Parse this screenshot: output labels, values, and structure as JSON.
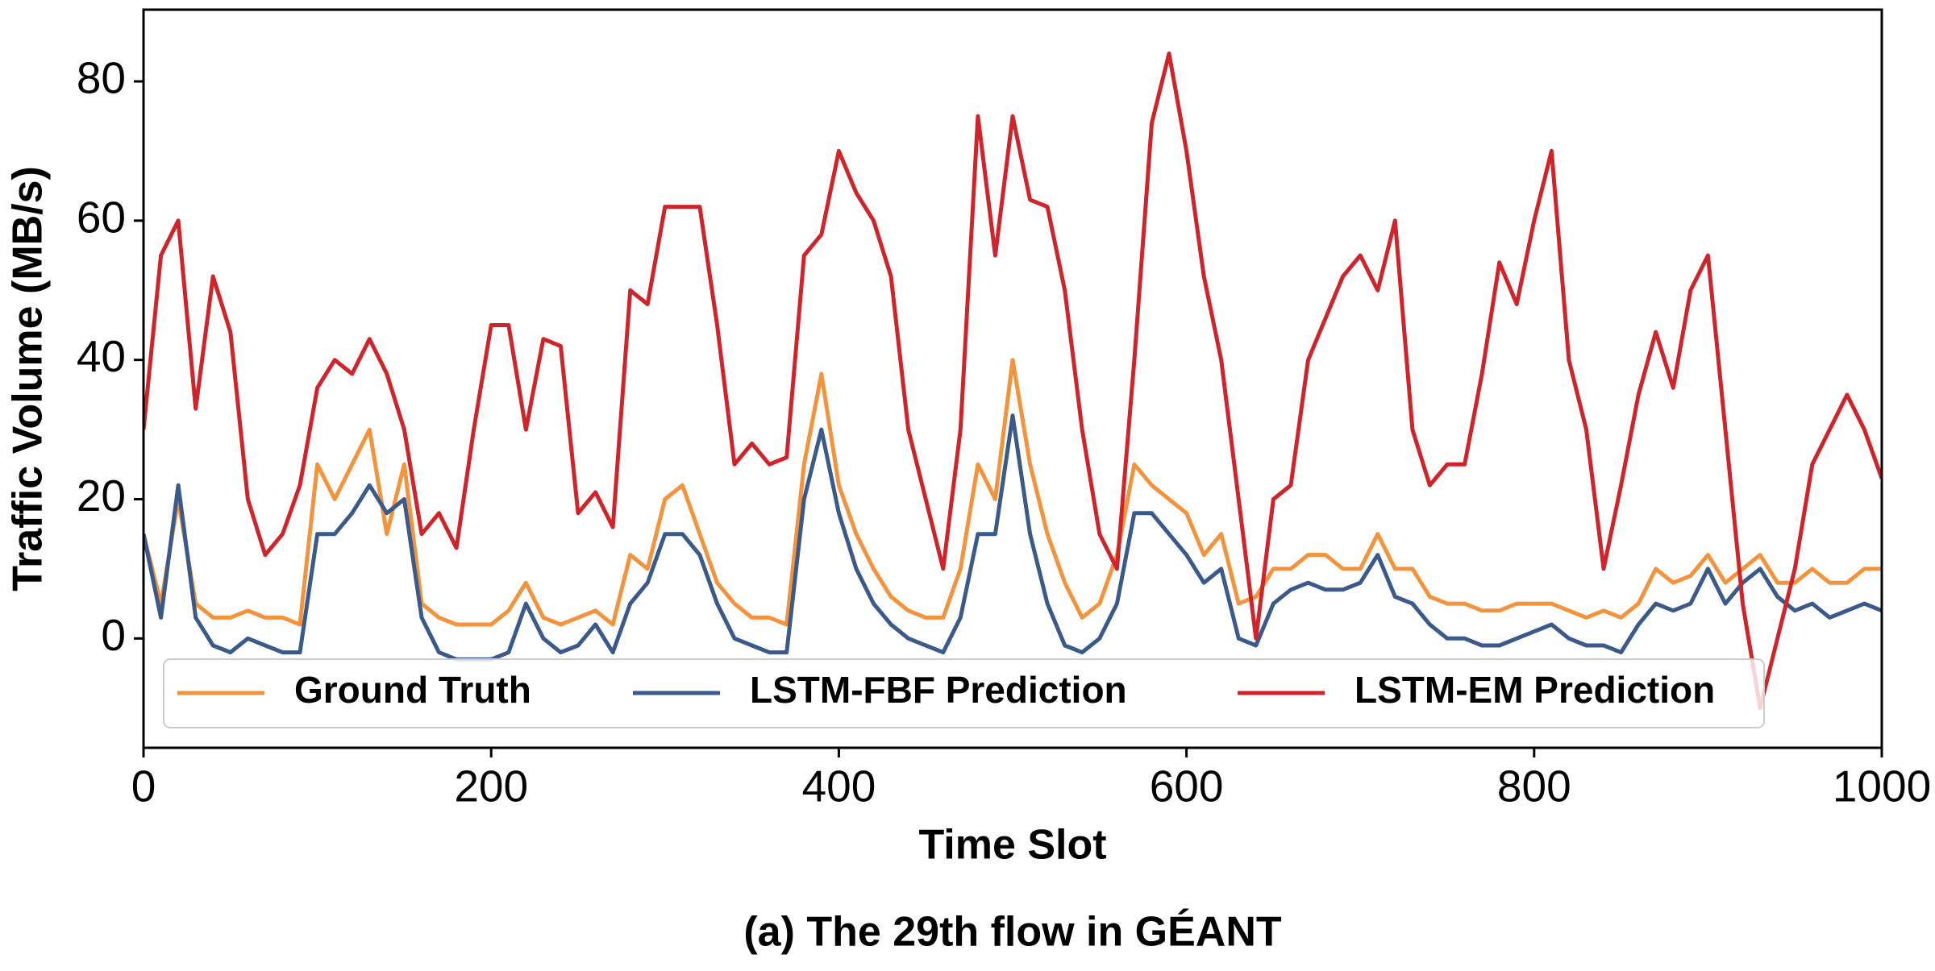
{
  "chart_data": {
    "type": "line",
    "caption": "(a) The 29th flow in GÉANT",
    "xlabel": "Time Slot",
    "ylabel": "Traffic Volume (MB/s)",
    "legend": "lower left",
    "x": [
      0,
      10,
      20,
      30,
      40,
      50,
      60,
      70,
      80,
      90,
      100,
      110,
      120,
      130,
      140,
      150,
      160,
      170,
      180,
      190,
      200,
      210,
      220,
      230,
      240,
      250,
      260,
      270,
      280,
      290,
      300,
      310,
      320,
      330,
      340,
      350,
      360,
      370,
      380,
      390,
      400,
      410,
      420,
      430,
      440,
      450,
      460,
      470,
      480,
      490,
      500,
      510,
      520,
      530,
      540,
      550,
      560,
      570,
      580,
      590,
      600,
      610,
      620,
      630,
      640,
      650,
      660,
      670,
      680,
      690,
      700,
      710,
      720,
      730,
      740,
      750,
      760,
      770,
      780,
      790,
      800,
      810,
      820,
      830,
      840,
      850,
      860,
      870,
      880,
      890,
      900,
      910,
      920,
      930,
      940,
      950,
      960,
      970,
      980,
      990,
      1000
    ],
    "series": [
      {
        "name": "Ground Truth",
        "color": "#f4933c",
        "values": [
          15,
          5,
          20,
          5,
          3,
          3,
          4,
          3,
          3,
          2,
          25,
          20,
          25,
          30,
          15,
          25,
          5,
          3,
          2,
          2,
          2,
          4,
          8,
          3,
          2,
          3,
          4,
          2,
          12,
          10,
          20,
          22,
          15,
          8,
          5,
          3,
          3,
          2,
          25,
          38,
          22,
          15,
          10,
          6,
          4,
          3,
          3,
          10,
          25,
          20,
          40,
          25,
          15,
          8,
          3,
          5,
          12,
          25,
          22,
          20,
          18,
          12,
          15,
          5,
          6,
          10,
          10,
          12,
          12,
          10,
          10,
          15,
          10,
          10,
          6,
          5,
          5,
          4,
          4,
          5,
          5,
          5,
          4,
          3,
          4,
          3,
          5,
          10,
          8,
          9,
          12,
          8,
          10,
          12,
          8,
          8,
          10,
          8,
          8,
          10,
          10
        ]
      },
      {
        "name": "LSTM-FBF Prediction",
        "color": "#3a5a8c",
        "values": [
          15,
          3,
          22,
          3,
          -1,
          -2,
          0,
          -1,
          -2,
          -2,
          15,
          15,
          18,
          22,
          18,
          20,
          3,
          -2,
          -3,
          -3,
          -3,
          -2,
          5,
          0,
          -2,
          -1,
          2,
          -2,
          5,
          8,
          15,
          15,
          12,
          5,
          0,
          -1,
          -2,
          -2,
          20,
          30,
          18,
          10,
          5,
          2,
          0,
          -1,
          -2,
          3,
          15,
          15,
          32,
          15,
          5,
          -1,
          -2,
          0,
          5,
          18,
          18,
          15,
          12,
          8,
          10,
          0,
          -1,
          5,
          7,
          8,
          7,
          7,
          8,
          12,
          6,
          5,
          2,
          0,
          0,
          -1,
          -1,
          0,
          1,
          2,
          0,
          -1,
          -1,
          -2,
          2,
          5,
          4,
          5,
          10,
          5,
          8,
          10,
          6,
          4,
          5,
          3,
          4,
          5,
          4
        ]
      },
      {
        "name": "LSTM-EM Prediction",
        "color": "#d1232a",
        "values": [
          30,
          55,
          60,
          33,
          52,
          44,
          20,
          12,
          15,
          22,
          36,
          40,
          38,
          43,
          38,
          30,
          15,
          18,
          13,
          30,
          45,
          45,
          30,
          43,
          42,
          18,
          21,
          16,
          50,
          48,
          62,
          62,
          62,
          45,
          25,
          28,
          25,
          26,
          55,
          58,
          70,
          64,
          60,
          52,
          30,
          20,
          10,
          30,
          75,
          55,
          75,
          63,
          62,
          50,
          30,
          15,
          10,
          40,
          74,
          84,
          70,
          52,
          40,
          20,
          0,
          20,
          22,
          40,
          46,
          52,
          55,
          50,
          60,
          30,
          22,
          25,
          25,
          38,
          54,
          48,
          60,
          70,
          40,
          30,
          10,
          22,
          35,
          44,
          36,
          50,
          55,
          30,
          5,
          -10,
          0,
          10,
          25,
          30,
          35,
          30,
          23
        ]
      }
    ],
    "xlim": [
      0,
      1000
    ],
    "ylim": [
      -15.7,
      90.3
    ],
    "xticks": [
      0,
      200,
      400,
      600,
      800,
      1000
    ],
    "yticks": [
      0,
      20,
      40,
      60,
      80
    ]
  }
}
